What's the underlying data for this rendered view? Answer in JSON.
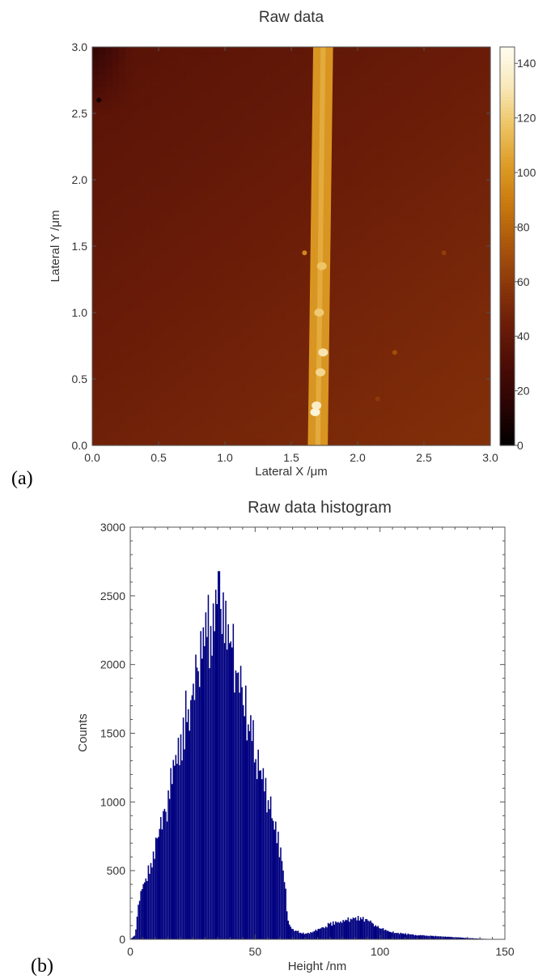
{
  "chart_data": [
    {
      "type": "heatmap",
      "panel_label": "(a)",
      "title": "Raw data",
      "xlabel": "Lateral X /μm",
      "ylabel": "Lateral Y /μm",
      "xlim": [
        0,
        3.0
      ],
      "ylim": [
        0,
        3.0
      ],
      "xticks": [
        "0.0",
        "0.5",
        "1.0",
        "1.5",
        "2.0",
        "2.5",
        "3.0"
      ],
      "yticks": [
        "0.0",
        "0.5",
        "1.0",
        "1.5",
        "2.0",
        "2.5",
        "3.0"
      ],
      "colorbar": {
        "range": [
          0,
          146
        ],
        "ticks": [
          "0",
          "20",
          "40",
          "60",
          "80",
          "100",
          "120",
          "140"
        ],
        "colors": [
          "#000000",
          "#2a0404",
          "#4a0c06",
          "#6a1c08",
          "#8a360a",
          "#aa540c",
          "#c8760e",
          "#dc9a24",
          "#ecc260",
          "#f8e8b8",
          "#fffcf0"
        ]
      },
      "features": {
        "background_low": 30,
        "background_high": 55,
        "fiber_x_top": 1.74,
        "fiber_x_bottom": 1.7,
        "fiber_width": 0.15,
        "fiber_height": 100,
        "particles": [
          {
            "x": 1.68,
            "y": 0.25,
            "h": 140
          },
          {
            "x": 1.69,
            "y": 0.3,
            "h": 135
          },
          {
            "x": 1.72,
            "y": 0.55,
            "h": 125
          },
          {
            "x": 1.74,
            "y": 0.7,
            "h": 130
          },
          {
            "x": 1.71,
            "y": 1.0,
            "h": 120
          },
          {
            "x": 1.73,
            "y": 1.35,
            "h": 118
          },
          {
            "x": 1.6,
            "y": 1.45,
            "h": 95
          },
          {
            "x": 2.28,
            "y": 0.7,
            "h": 70
          },
          {
            "x": 2.65,
            "y": 1.45,
            "h": 62
          },
          {
            "x": 2.15,
            "y": 0.35,
            "h": 60
          },
          {
            "x": 0.05,
            "y": 2.6,
            "h": 8
          }
        ]
      }
    },
    {
      "type": "bar",
      "panel_label": "(b)",
      "title": "Raw data histogram",
      "xlabel": "Height /nm",
      "ylabel": "Counts",
      "xlim": [
        0,
        150
      ],
      "ylim": [
        0,
        3000
      ],
      "xticks": [
        "0",
        "50",
        "100",
        "150"
      ],
      "yticks": [
        "0",
        "500",
        "1000",
        "1500",
        "2000",
        "2500",
        "3000"
      ],
      "color": "#000080",
      "envelope_x": [
        0,
        2,
        3,
        5,
        8,
        10,
        15,
        20,
        25,
        30,
        33,
        35,
        37,
        40,
        45,
        50,
        55,
        60,
        62,
        63,
        65,
        68,
        70,
        72,
        75,
        80,
        85,
        90,
        92,
        95,
        100,
        105,
        110,
        115,
        120,
        125,
        130,
        135,
        140,
        145,
        147
      ],
      "envelope_y": [
        0,
        30,
        200,
        400,
        500,
        650,
        1000,
        1400,
        1800,
        2100,
        2350,
        2350,
        2300,
        2100,
        1750,
        1350,
        1000,
        650,
        400,
        130,
        70,
        50,
        40,
        45,
        70,
        110,
        130,
        150,
        150,
        140,
        80,
        50,
        40,
        30,
        25,
        20,
        15,
        10,
        5,
        2,
        0
      ],
      "peak": {
        "x": 35.5,
        "y": 2680
      }
    }
  ]
}
